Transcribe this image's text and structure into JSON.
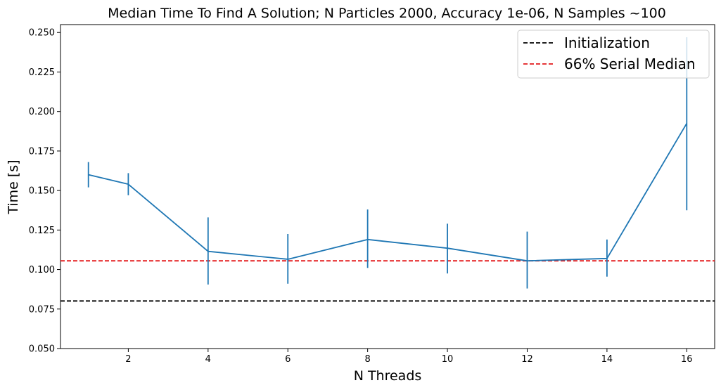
{
  "chart_data": {
    "type": "line",
    "title": "Median Time To Find A Solution; N Particles 2000, Accuracy 1e-06, N Samples ~100",
    "xlabel": "N Threads",
    "ylabel": "Time [s]",
    "xlim": [
      0.3,
      16.7
    ],
    "ylim": [
      0.05,
      0.255
    ],
    "x_ticks": [
      2,
      4,
      6,
      8,
      10,
      12,
      14,
      16
    ],
    "x_tick_labels": [
      "2",
      "4",
      "6",
      "8",
      "10",
      "12",
      "14",
      "16"
    ],
    "y_ticks": [
      0.05,
      0.075,
      0.1,
      0.125,
      0.15,
      0.175,
      0.2,
      0.225,
      0.25
    ],
    "y_tick_labels": [
      "0.050",
      "0.075",
      "0.100",
      "0.125",
      "0.150",
      "0.175",
      "0.200",
      "0.225",
      "0.250"
    ],
    "grid": false,
    "legend_position": "top-right",
    "series": [
      {
        "color": "#1f77b4",
        "x": [
          1,
          2,
          4,
          6,
          8,
          10,
          12,
          14,
          16
        ],
        "y": [
          0.16,
          0.154,
          0.1115,
          0.1065,
          0.119,
          0.1135,
          0.1055,
          0.107,
          0.1925
        ],
        "err_low": [
          0.152,
          0.147,
          0.0905,
          0.091,
          0.101,
          0.0975,
          0.088,
          0.0955,
          0.1375
        ],
        "err_high": [
          0.168,
          0.161,
          0.133,
          0.1225,
          0.138,
          0.129,
          0.124,
          0.119,
          0.247
        ]
      }
    ],
    "reference_lines": [
      {
        "name": "Initialization",
        "y": 0.0801,
        "color": "#000000"
      },
      {
        "name": "66% Serial Median",
        "y": 0.1055,
        "color": "#e31a1c"
      }
    ]
  }
}
